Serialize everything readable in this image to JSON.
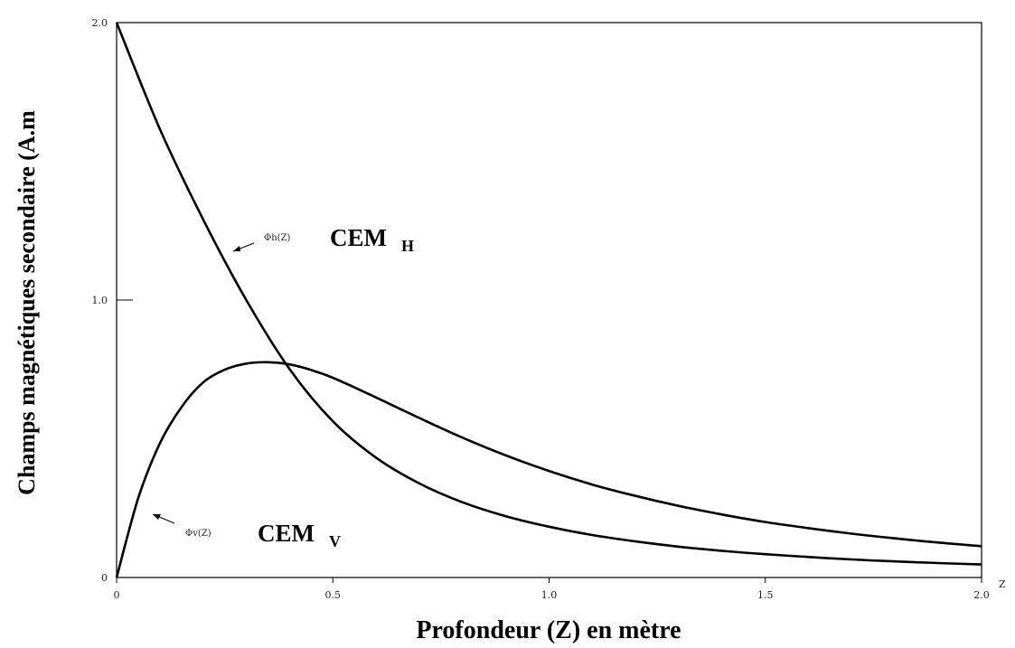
{
  "chart_data": {
    "type": "line",
    "xlabel": "Profondeur (Z) en mètre",
    "ylabel": "Champs magnétiques secondaire (A.m",
    "x_axis_end_label": "Z",
    "xlim": [
      0,
      2.0
    ],
    "ylim": [
      0,
      2.0
    ],
    "x_ticks": [
      0,
      0.5,
      1.0,
      1.5,
      2.0
    ],
    "x_tick_labels": [
      "0",
      "0.5",
      "1.0",
      "1.5",
      "2.0"
    ],
    "y_ticks": [
      0,
      1.0,
      2.0
    ],
    "y_tick_labels": [
      "0",
      "1.0",
      "2.0"
    ],
    "grid": false,
    "series": [
      {
        "name": "Φh(Z)",
        "x": [
          0,
          0.1,
          0.2,
          0.3,
          0.4,
          0.5,
          0.6,
          0.7,
          0.8,
          0.9,
          1.0,
          1.1,
          1.2,
          1.3,
          1.4,
          1.5,
          1.6,
          1.7,
          1.8,
          1.9,
          2.0
        ],
        "y": [
          2.0,
          1.617,
          1.291,
          1.0,
          0.751,
          0.563,
          0.432,
          0.339,
          0.271,
          0.221,
          0.183,
          0.153,
          0.13,
          0.111,
          0.096,
          0.084,
          0.074,
          0.065,
          0.058,
          0.052,
          0.047
        ]
      },
      {
        "name": "Φv(Z)",
        "x": [
          0,
          0.05,
          0.1,
          0.15,
          0.2,
          0.25,
          0.3,
          0.35,
          0.4,
          0.45,
          0.5,
          0.6,
          0.7,
          0.8,
          0.9,
          1.0,
          1.1,
          1.2,
          1.3,
          1.4,
          1.5,
          1.6,
          1.7,
          1.8,
          1.9,
          2.0
        ],
        "y": [
          0,
          0.286,
          0.483,
          0.614,
          0.703,
          0.749,
          0.771,
          0.776,
          0.768,
          0.748,
          0.72,
          0.649,
          0.575,
          0.504,
          0.44,
          0.384,
          0.335,
          0.294,
          0.258,
          0.227,
          0.2,
          0.178,
          0.158,
          0.141,
          0.126,
          0.113
        ]
      }
    ],
    "annotations": [
      {
        "text": "Φh(Z)",
        "label": "CEM",
        "subscript": "H",
        "series": 0
      },
      {
        "text": "Φv(Z)",
        "label": "CEM",
        "subscript": "V",
        "series": 1
      }
    ]
  }
}
